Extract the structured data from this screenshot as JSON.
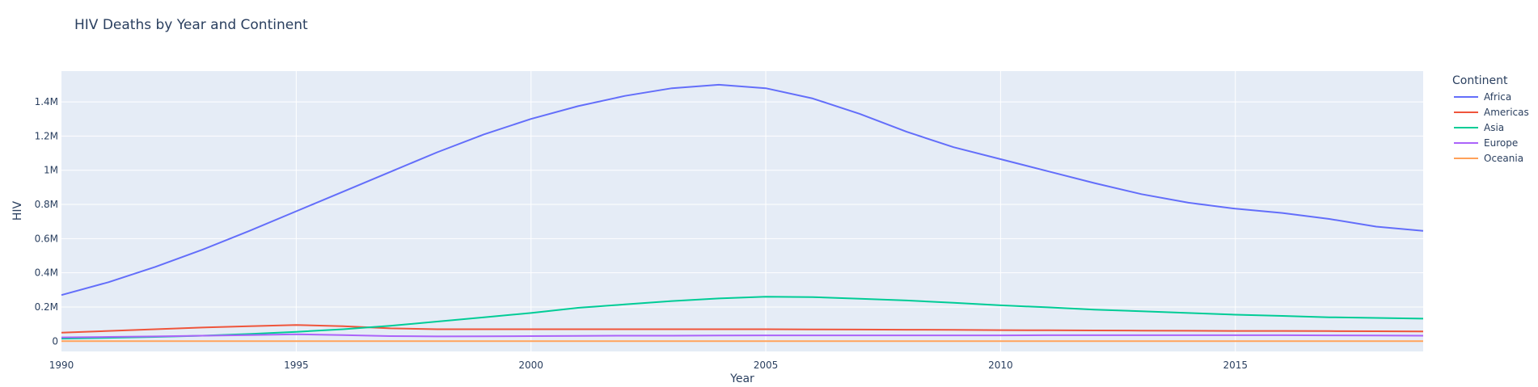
{
  "chart_data": {
    "type": "line",
    "title": "HIV Deaths by Year and Continent",
    "xlabel": "Year",
    "ylabel": "HIV",
    "xlim": [
      1990,
      2019
    ],
    "ylim": [
      -60000,
      1580000
    ],
    "x_ticks": [
      {
        "value": 1990,
        "label": "1990"
      },
      {
        "value": 1995,
        "label": "1995"
      },
      {
        "value": 2000,
        "label": "2000"
      },
      {
        "value": 2005,
        "label": "2005"
      },
      {
        "value": 2010,
        "label": "2010"
      },
      {
        "value": 2015,
        "label": "2015"
      }
    ],
    "y_ticks": [
      {
        "value": 0,
        "label": "0"
      },
      {
        "value": 200000,
        "label": "0.2M"
      },
      {
        "value": 400000,
        "label": "0.4M"
      },
      {
        "value": 600000,
        "label": "0.6M"
      },
      {
        "value": 800000,
        "label": "0.8M"
      },
      {
        "value": 1000000,
        "label": "1M"
      },
      {
        "value": 1200000,
        "label": "1.2M"
      },
      {
        "value": 1400000,
        "label": "1.4M"
      }
    ],
    "grid": true,
    "legend": {
      "title": "Continent",
      "placement": "right"
    },
    "x": [
      1990,
      1991,
      1992,
      1993,
      1994,
      1995,
      1996,
      1997,
      1998,
      1999,
      2000,
      2001,
      2002,
      2003,
      2004,
      2005,
      2006,
      2007,
      2008,
      2009,
      2010,
      2011,
      2012,
      2013,
      2014,
      2015,
      2016,
      2017,
      2018,
      2019
    ],
    "series": [
      {
        "name": "Africa",
        "color": "#636efa",
        "values": [
          270000,
          345000,
          435000,
          535000,
          645000,
          760000,
          875000,
          990000,
          1105000,
          1210000,
          1300000,
          1375000,
          1435000,
          1480000,
          1500000,
          1480000,
          1420000,
          1330000,
          1225000,
          1135000,
          1065000,
          995000,
          925000,
          860000,
          810000,
          775000,
          750000,
          715000,
          670000,
          645000
        ]
      },
      {
        "name": "Americas",
        "color": "#ef553b",
        "values": [
          50000,
          60000,
          70000,
          80000,
          88000,
          95000,
          88000,
          75000,
          70000,
          70000,
          70000,
          70000,
          70000,
          70000,
          70000,
          70000,
          69000,
          68000,
          67000,
          66000,
          65000,
          64000,
          63000,
          62000,
          61000,
          60000,
          60000,
          59000,
          58000,
          57000
        ]
      },
      {
        "name": "Asia",
        "color": "#00cc96",
        "values": [
          15000,
          20000,
          25000,
          32000,
          42000,
          55000,
          70000,
          90000,
          115000,
          140000,
          165000,
          195000,
          215000,
          235000,
          250000,
          260000,
          258000,
          248000,
          238000,
          225000,
          210000,
          198000,
          185000,
          175000,
          165000,
          155000,
          148000,
          140000,
          136000,
          132000
        ]
      },
      {
        "name": "Europe",
        "color": "#ab63fa",
        "values": [
          22000,
          25000,
          28000,
          32000,
          36000,
          40000,
          36000,
          30000,
          28000,
          29000,
          30000,
          31000,
          32000,
          32000,
          33000,
          34000,
          34000,
          34000,
          34000,
          34000,
          34000,
          35000,
          35000,
          35000,
          35000,
          35000,
          35000,
          34000,
          33000,
          32000
        ]
      },
      {
        "name": "Oceania",
        "color": "#ffa15a",
        "values": [
          300,
          350,
          400,
          450,
          500,
          550,
          500,
          450,
          420,
          400,
          400,
          400,
          400,
          400,
          400,
          400,
          400,
          400,
          400,
          400,
          400,
          400,
          400,
          400,
          400,
          400,
          400,
          400,
          400,
          400
        ]
      }
    ]
  }
}
